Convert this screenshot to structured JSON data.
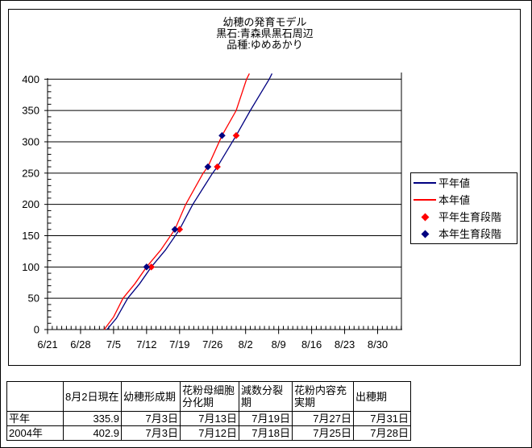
{
  "title": {
    "line1": "幼穂の発育モデル",
    "line2": "黒石:青森県黒石周辺",
    "line3": "品種:ゆめあかり"
  },
  "colors": {
    "normal_year": "#000080",
    "current_year": "#FF0000",
    "axis": "#000000",
    "background": "#FFFFFF"
  },
  "chart_data": {
    "type": "line",
    "title": "幼穂の発育モデル 黒石:青森県黒石周辺 品種:ゆめあかり",
    "xlabel": "",
    "ylabel": "",
    "x_ticks": [
      "6/21",
      "6/28",
      "7/5",
      "7/12",
      "7/19",
      "7/26",
      "8/2",
      "8/9",
      "8/16",
      "8/23",
      "8/30"
    ],
    "x_major_unit_days": 7,
    "x_minor_unit_days": 1,
    "x_range_days_from_6_21": [
      0,
      75
    ],
    "y_ticks": [
      0,
      50,
      100,
      150,
      200,
      250,
      300,
      350,
      400
    ],
    "y_range": [
      0,
      410
    ],
    "y_minor_unit": 10,
    "grid": "horizontal-major",
    "legend_position": "right",
    "series": [
      {
        "name": "平年値",
        "color": "#000080",
        "style": "line",
        "points": [
          [
            "7/3.6",
            0
          ],
          [
            "7/5.6",
            18
          ],
          [
            "7/8",
            50
          ],
          [
            "7/10.5",
            73
          ],
          [
            "7/13",
            100
          ],
          [
            "7/16",
            127
          ],
          [
            "7/19",
            160
          ],
          [
            "7/21.8",
            200
          ],
          [
            "7/26",
            250
          ],
          [
            "7/27",
            260
          ],
          [
            "7/31",
            310
          ],
          [
            "8/3",
            350
          ],
          [
            "8/7",
            400
          ],
          [
            "8/7.6",
            409
          ]
        ]
      },
      {
        "name": "本年値",
        "color": "#FF0000",
        "style": "line",
        "points": [
          [
            "7/3",
            0
          ],
          [
            "7/5",
            20
          ],
          [
            "7/7",
            50
          ],
          [
            "7/9.5",
            73
          ],
          [
            "7/12",
            100
          ],
          [
            "7/15",
            127
          ],
          [
            "7/18",
            160
          ],
          [
            "7/20.3",
            200
          ],
          [
            "7/24",
            250
          ],
          [
            "7/25",
            260
          ],
          [
            "7/28",
            310
          ],
          [
            "7/31",
            350
          ],
          [
            "8/2.2",
            400
          ],
          [
            "8/2.8",
            409
          ]
        ]
      }
    ],
    "markers": [
      {
        "name": "平年生育段階",
        "color": "#FF0000",
        "shape": "diamond",
        "points": [
          [
            "7/13",
            100
          ],
          [
            "7/19",
            160
          ],
          [
            "7/27",
            260
          ],
          [
            "7/31",
            310
          ]
        ]
      },
      {
        "name": "本年生育段階",
        "color": "#000080",
        "shape": "diamond",
        "points": [
          [
            "7/12",
            100
          ],
          [
            "7/18",
            160
          ],
          [
            "7/25",
            260
          ],
          [
            "7/28",
            310
          ]
        ]
      }
    ]
  },
  "legend": {
    "items": [
      {
        "label": "平年値",
        "marker": "line",
        "color": "#000080"
      },
      {
        "label": "本年値",
        "marker": "line",
        "color": "#FF0000"
      },
      {
        "label": "平年生育段階",
        "marker": "diamond",
        "color": "#FF0000"
      },
      {
        "label": "本年生育段階",
        "marker": "diamond",
        "color": "#000080"
      }
    ]
  },
  "table": {
    "columns": [
      "",
      "8月2日現在",
      "幼穂形成期",
      "花粉母細胞分化期",
      "減数分裂期",
      "花粉内容充実期",
      "出穂期"
    ],
    "rows": [
      {
        "label": "平年",
        "values": [
          "335.9",
          "7月3日",
          "7月13日",
          "7月19日",
          "7月27日",
          "7月31日"
        ]
      },
      {
        "label": "2004年",
        "values": [
          "402.9",
          "7月3日",
          "7月12日",
          "7月18日",
          "7月25日",
          "7月28日"
        ]
      }
    ]
  }
}
